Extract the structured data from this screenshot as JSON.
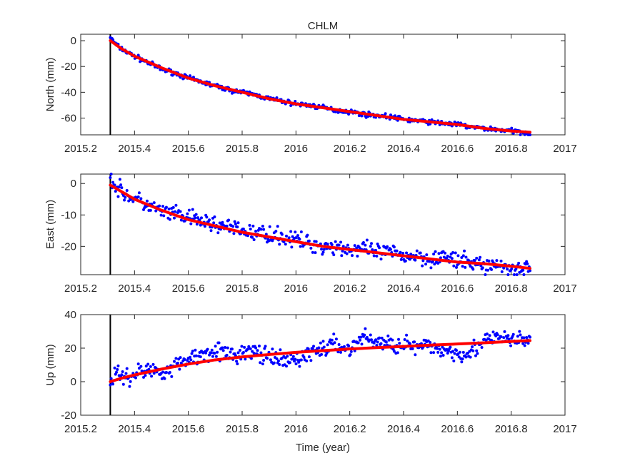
{
  "figure_title": "CHLM",
  "xlabel": "Time (year)",
  "colors": {
    "observed": "#0000ff",
    "model": "#ff0000",
    "event_line": "#000000",
    "axes": "#262626"
  },
  "chart_data": [
    {
      "type": "scatter",
      "ylabel": "North (mm)",
      "xlim": [
        2015.2,
        2017
      ],
      "ylim": [
        -73,
        5
      ],
      "xticks": [
        "2015.2",
        "2015.4",
        "2015.6",
        "2015.8",
        "2016",
        "2016.2",
        "2016.4",
        "2016.6",
        "2016.8",
        "2017"
      ],
      "yticks": [
        "0",
        "-20",
        "-40",
        "-60"
      ],
      "event_time": 2015.31,
      "model_curve": {
        "x": [
          2015.31,
          2015.35,
          2015.4,
          2015.5,
          2015.6,
          2015.7,
          2015.8,
          2015.9,
          2016.0,
          2016.1,
          2016.2,
          2016.3,
          2016.4,
          2016.5,
          2016.6,
          2016.7,
          2016.8,
          2016.87
        ],
        "y": [
          0,
          -6,
          -12,
          -21,
          -29,
          -35,
          -40,
          -45,
          -49,
          -52,
          -55,
          -58,
          -61,
          -63,
          -65,
          -68,
          -70,
          -71
        ]
      },
      "observed": {
        "x": [
          2015.31,
          2015.33,
          2015.35,
          2015.38,
          2015.42,
          2015.46,
          2015.5,
          2015.55,
          2015.6,
          2015.65,
          2015.7,
          2015.75,
          2015.8,
          2015.85,
          2015.9,
          2015.95,
          2016.0,
          2016.05,
          2016.1,
          2016.15,
          2016.2,
          2016.25,
          2016.3,
          2016.35,
          2016.4,
          2016.45,
          2016.5,
          2016.55,
          2016.6,
          2016.65,
          2016.7,
          2016.75,
          2016.8,
          2016.85,
          2016.87
        ],
        "y": [
          3,
          -3,
          -6,
          -10,
          -14,
          -18,
          -22,
          -25,
          -29,
          -32,
          -35,
          -38,
          -40,
          -42,
          -45,
          -47,
          -49,
          -50,
          -52,
          -54,
          -55,
          -57,
          -58,
          -59,
          -61,
          -62,
          -63,
          -64,
          -65,
          -67,
          -68,
          -69,
          -70,
          -71,
          -72
        ]
      },
      "observed_spread": 2.5
    },
    {
      "type": "scatter",
      "ylabel": "East (mm)",
      "xlim": [
        2015.2,
        2017
      ],
      "ylim": [
        -29,
        3
      ],
      "xticks": [
        "2015.2",
        "2015.4",
        "2015.6",
        "2015.8",
        "2016",
        "2016.2",
        "2016.4",
        "2016.6",
        "2016.8",
        "2017"
      ],
      "yticks": [
        "0",
        "-10",
        "-20"
      ],
      "event_time": 2015.31,
      "model_curve": {
        "x": [
          2015.31,
          2015.35,
          2015.4,
          2015.5,
          2015.6,
          2015.7,
          2015.8,
          2015.9,
          2016.0,
          2016.1,
          2016.2,
          2016.3,
          2016.4,
          2016.5,
          2016.6,
          2016.7,
          2016.8,
          2016.87
        ],
        "y": [
          -0.5,
          -2.5,
          -5,
          -8.5,
          -11.5,
          -13.5,
          -15.5,
          -17,
          -18.5,
          -20,
          -21,
          -22,
          -23,
          -24,
          -25,
          -25.5,
          -26.3,
          -27
        ]
      },
      "observed": {
        "x": [
          2015.31,
          2015.33,
          2015.36,
          2015.4,
          2015.45,
          2015.5,
          2015.55,
          2015.6,
          2015.65,
          2015.7,
          2015.75,
          2015.8,
          2015.85,
          2015.9,
          2015.95,
          2016.0,
          2016.05,
          2016.1,
          2016.15,
          2016.2,
          2016.25,
          2016.3,
          2016.35,
          2016.4,
          2016.45,
          2016.5,
          2016.55,
          2016.6,
          2016.65,
          2016.7,
          2016.75,
          2016.8,
          2016.85,
          2016.87
        ],
        "y": [
          2,
          -1,
          -3,
          -5,
          -7,
          -9,
          -10,
          -11,
          -12,
          -13,
          -14,
          -15,
          -16,
          -16,
          -17,
          -18,
          -19,
          -20,
          -20,
          -21,
          -21,
          -22,
          -22,
          -23,
          -23,
          -24,
          -23,
          -25,
          -25,
          -26,
          -26,
          -27,
          -27,
          -27
        ]
      },
      "observed_spread": 3.5
    },
    {
      "type": "scatter",
      "ylabel": "Up (mm)",
      "xlim": [
        2015.2,
        2017
      ],
      "ylim": [
        -20,
        40
      ],
      "xticks": [
        "2015.2",
        "2015.4",
        "2015.6",
        "2015.8",
        "2016",
        "2016.2",
        "2016.4",
        "2016.6",
        "2016.8",
        "2017"
      ],
      "yticks": [
        "40",
        "20",
        "0",
        "-20"
      ],
      "event_time": 2015.31,
      "model_curve": {
        "x": [
          2015.31,
          2015.35,
          2015.4,
          2015.5,
          2015.6,
          2015.7,
          2015.8,
          2015.9,
          2016.0,
          2016.1,
          2016.2,
          2016.3,
          2016.4,
          2016.5,
          2016.6,
          2016.7,
          2016.8,
          2016.87
        ],
        "y": [
          0,
          2,
          4,
          7.5,
          10.5,
          13,
          14.8,
          16.2,
          17.5,
          18.5,
          19.5,
          20.3,
          21,
          21.8,
          22.5,
          23.2,
          24,
          24.5
        ]
      },
      "observed": {
        "x": [
          2015.31,
          2015.34,
          2015.38,
          2015.42,
          2015.46,
          2015.5,
          2015.55,
          2015.6,
          2015.65,
          2015.7,
          2015.75,
          2015.8,
          2015.85,
          2015.9,
          2015.95,
          2016.0,
          2016.05,
          2016.1,
          2016.15,
          2016.2,
          2016.25,
          2016.3,
          2016.35,
          2016.4,
          2016.45,
          2016.5,
          2016.55,
          2016.6,
          2016.65,
          2016.7,
          2016.75,
          2016.8,
          2016.85,
          2016.87
        ],
        "y": [
          2,
          4,
          3,
          6,
          7,
          6,
          9,
          14,
          16,
          20,
          15,
          17,
          18,
          14,
          12,
          13,
          17,
          20,
          22,
          19,
          27,
          24,
          22,
          23,
          20,
          21,
          19,
          17,
          18,
          24,
          26,
          25,
          24,
          27
        ]
      },
      "observed_spread": 7
    }
  ]
}
